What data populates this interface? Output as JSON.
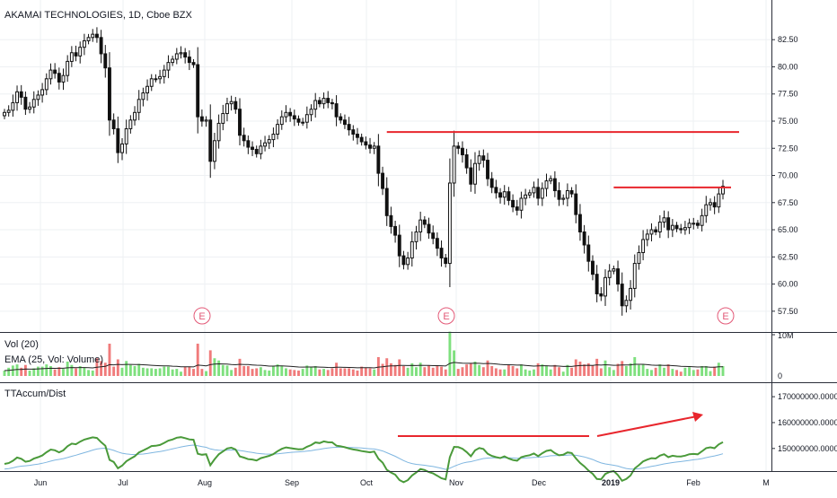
{
  "header": {
    "title": "AKAMAI TECHNOLOGIES, 1D, Cboe BZX",
    "vol_title": "Vol (20)",
    "ema_title": "EMA (25, Vol: Volume)",
    "ind_title": "TTAccum/Dist"
  },
  "colors": {
    "up": "#ffffff",
    "down": "#111111",
    "wick": "#111111",
    "resistance": "#e8262d",
    "trend": "#e8262d",
    "vol_up": "#7ee07e",
    "vol_down": "#f07b7b",
    "ind_line": "#4a9a3a",
    "ind_ma": "#7fb6e0",
    "earnings": "#e35a78"
  },
  "chart_data": [
    {
      "type": "candlestick",
      "ylim": [
        56.0,
        84.5
      ],
      "yticks": [
        "82.50",
        "80.00",
        "77.50",
        "75.00",
        "72.50",
        "70.00",
        "67.50",
        "65.00",
        "62.50",
        "60.00",
        "57.50"
      ],
      "xticks": [
        "Jun",
        "Jul",
        "Aug",
        "Sep",
        "Oct",
        "Nov",
        "Dec",
        "2019",
        "Feb",
        "M"
      ],
      "close": [
        75.8,
        76.0,
        76.7,
        77.7,
        77.2,
        76.1,
        76.3,
        77.0,
        77.4,
        77.9,
        78.9,
        79.7,
        79.4,
        78.6,
        79.2,
        80.5,
        81.3,
        81.0,
        81.8,
        82.4,
        82.7,
        83.0,
        82.7,
        81.2,
        79.9,
        75.1,
        74.3,
        72.1,
        72.9,
        74.3,
        75.1,
        75.8,
        77.0,
        77.6,
        78.2,
        78.9,
        78.9,
        79.1,
        79.7,
        80.4,
        80.7,
        81.2,
        81.3,
        80.9,
        80.4,
        80.2,
        75.4,
        75.0,
        75.1,
        71.3,
        73.2,
        74.8,
        75.7,
        76.6,
        76.8,
        76.1,
        73.7,
        73.2,
        72.6,
        72.4,
        72.0,
        72.7,
        73.0,
        73.3,
        73.8,
        74.7,
        75.4,
        75.8,
        75.5,
        75.2,
        74.9,
        74.9,
        75.6,
        76.1,
        76.9,
        76.6,
        77.1,
        76.7,
        76.6,
        75.4,
        75.1,
        74.7,
        74.2,
        73.8,
        73.5,
        73.1,
        72.8,
        72.5,
        72.7,
        70.2,
        68.8,
        66.3,
        65.3,
        64.5,
        62.6,
        61.8,
        62.4,
        63.9,
        64.8,
        65.9,
        65.5,
        64.7,
        64.2,
        63.3,
        62.4,
        61.9,
        69.3,
        72.7,
        72.5,
        71.9,
        70.7,
        69.2,
        71.1,
        71.8,
        71.4,
        69.7,
        68.9,
        68.4,
        68.0,
        68.5,
        67.7,
        67.1,
        66.8,
        67.9,
        68.2,
        68.4,
        68.9,
        67.9,
        68.8,
        69.5,
        69.7,
        68.6,
        67.8,
        67.9,
        68.6,
        68.3,
        66.4,
        64.8,
        63.6,
        62.1,
        60.9,
        59.1,
        58.9,
        60.6,
        61.2,
        61.4,
        60.0,
        58.0,
        58.5,
        59.6,
        61.9,
        62.9,
        64.1,
        64.6,
        65.0,
        64.8,
        65.7,
        66.1,
        65.0,
        65.4,
        65.1,
        65.0,
        65.2,
        65.6,
        65.6,
        65.4,
        66.3,
        67.3,
        67.5,
        67.1,
        68.3,
        69.0
      ],
      "volume_scale": "10M",
      "annotations": [
        "E",
        "E",
        "E"
      ]
    },
    {
      "type": "line",
      "name": "TTAccum/Dist",
      "ylim": [
        143000000,
        173500000
      ],
      "yticks": [
        "170000000.0000",
        "160000000.0000",
        "150000000.0000"
      ]
    }
  ]
}
